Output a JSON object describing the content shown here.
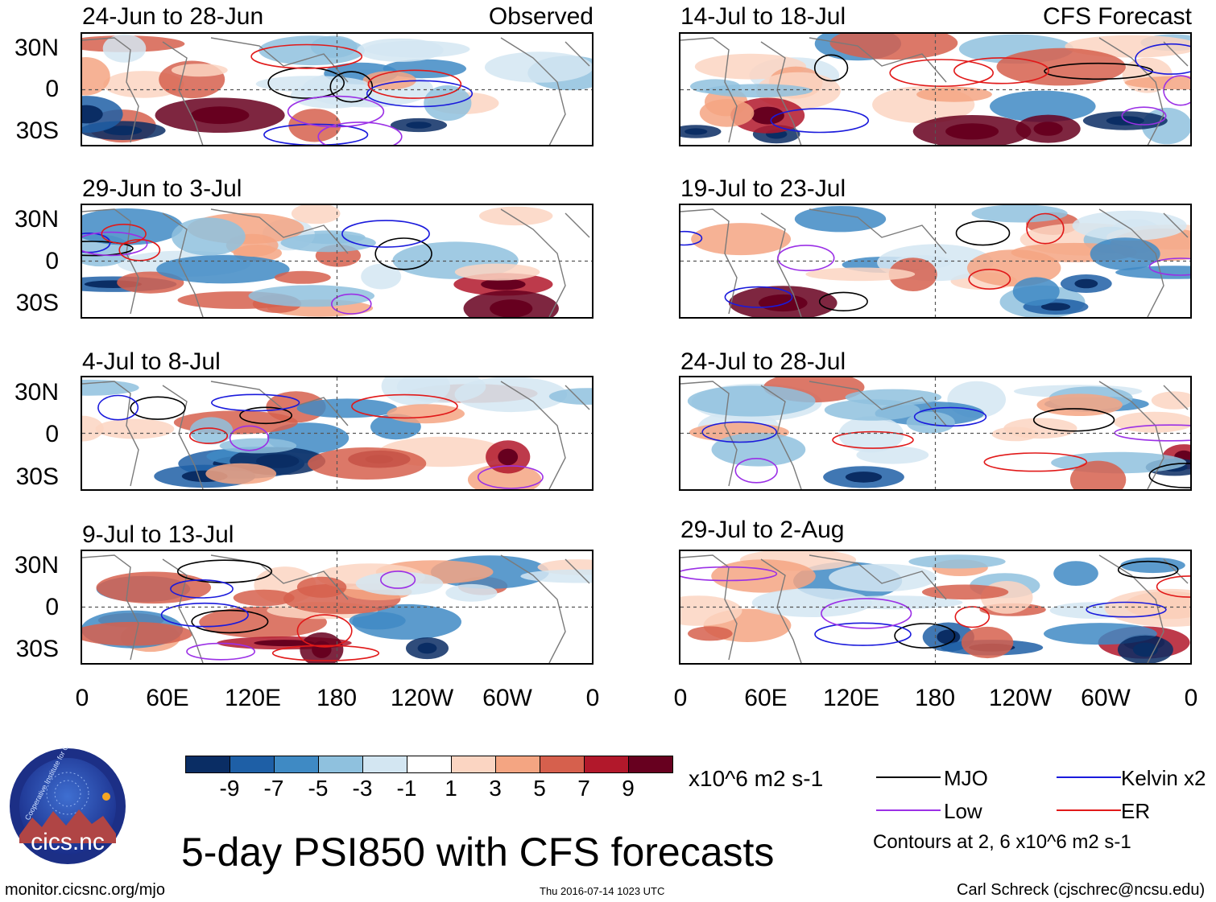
{
  "observed_label": "Observed",
  "forecast_label": "CFS Forecast",
  "lat_labels": [
    "30N",
    "0",
    "30S"
  ],
  "lon_labels": [
    "0",
    "60E",
    "120E",
    "180",
    "120W",
    "60W",
    "0"
  ],
  "chart_data": {
    "type": "heatmap",
    "title": "5-day PSI850 with CFS forecasts",
    "variable": "PSI850 anomaly",
    "units": "x10^6 m2 s-1",
    "colorbar": {
      "ticks": [
        "-9",
        "-7",
        "-5",
        "-3",
        "-1",
        "1",
        "3",
        "5",
        "7",
        "9"
      ],
      "colors": [
        "#0a2d64",
        "#1e5fa6",
        "#3f8ac4",
        "#8fc1de",
        "#d3e6f2",
        "#ffffff",
        "#fbd5c2",
        "#f4a582",
        "#d6604d",
        "#b2182b",
        "#67001f"
      ]
    },
    "xaxis": {
      "ticks": [
        "0",
        "60E",
        "120E",
        "180",
        "120W",
        "60W",
        "0"
      ],
      "range": [
        0,
        360
      ]
    },
    "yaxis": {
      "ticks": [
        "30N",
        "0",
        "30S"
      ],
      "range": [
        -40,
        40
      ]
    },
    "panels": [
      {
        "period": "24-Jun to 28-Jun",
        "source": "Observed"
      },
      {
        "period": "29-Jun to 3-Jul",
        "source": "Observed"
      },
      {
        "period": "4-Jul to 8-Jul",
        "source": "Observed"
      },
      {
        "period": "9-Jul to 13-Jul",
        "source": "Observed"
      },
      {
        "period": "14-Jul to 18-Jul",
        "source": "CFS Forecast"
      },
      {
        "period": "19-Jul to 23-Jul",
        "source": "CFS Forecast"
      },
      {
        "period": "24-Jul to 28-Jul",
        "source": "CFS Forecast"
      },
      {
        "period": "29-Jul to 2-Aug",
        "source": "CFS Forecast"
      }
    ],
    "contours": [
      {
        "name": "MJO",
        "color": "#000000"
      },
      {
        "name": "Kelvin x2",
        "color": "#1a1adc"
      },
      {
        "name": "Low",
        "color": "#9b30e6"
      },
      {
        "name": "ER",
        "color": "#e11919"
      }
    ],
    "contour_note": "Contours at 2, 6 x10^6 m2 s-1"
  },
  "logo_text": "cics.nc",
  "logo_ring_text": "Cooperative Institute for Climate and Satellites",
  "footer": {
    "left": "monitor.cicsnc.org/mjo",
    "center": "Thu 2016-07-14 1023 UTC",
    "right": "Carl Schreck (cjschrec@ncsu.edu)"
  }
}
